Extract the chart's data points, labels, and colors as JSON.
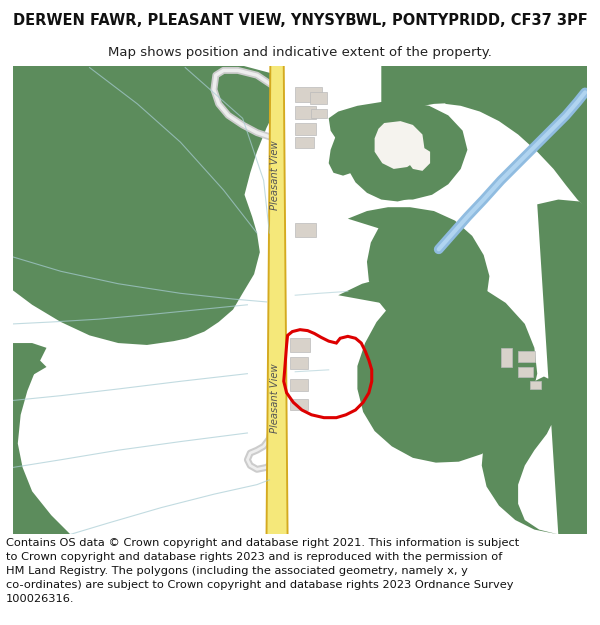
{
  "title": "DERWEN FAWR, PLEASANT VIEW, YNYSYBWL, PONTYPRIDD, CF37 3PF",
  "subtitle": "Map shows position and indicative extent of the property.",
  "footer": "Contains OS data © Crown copyright and database right 2021. This information is subject\nto Crown copyright and database rights 2023 and is reproduced with the permission of\nHM Land Registry. The polygons (including the associated geometry, namely x, y\nco-ordinates) are subject to Crown copyright and database rights 2023 Ordnance Survey\n100026316.",
  "bg_color": "#ffffff",
  "map_bg": "#f5f3ee",
  "green": "#5c8c5c",
  "road_yellow": "#f5e87a",
  "road_border": "#d4aa20",
  "water_blue": "#90bce0",
  "building_fill": "#d8d2ca",
  "building_edge": "#bbbbbb",
  "plot_red": "#dd0000",
  "field_line": "#a8ccd4",
  "title_fontsize": 10.5,
  "subtitle_fontsize": 9.5,
  "footer_fontsize": 8.2,
  "road_label_color": "#555555",
  "road_text_rotation": -90
}
